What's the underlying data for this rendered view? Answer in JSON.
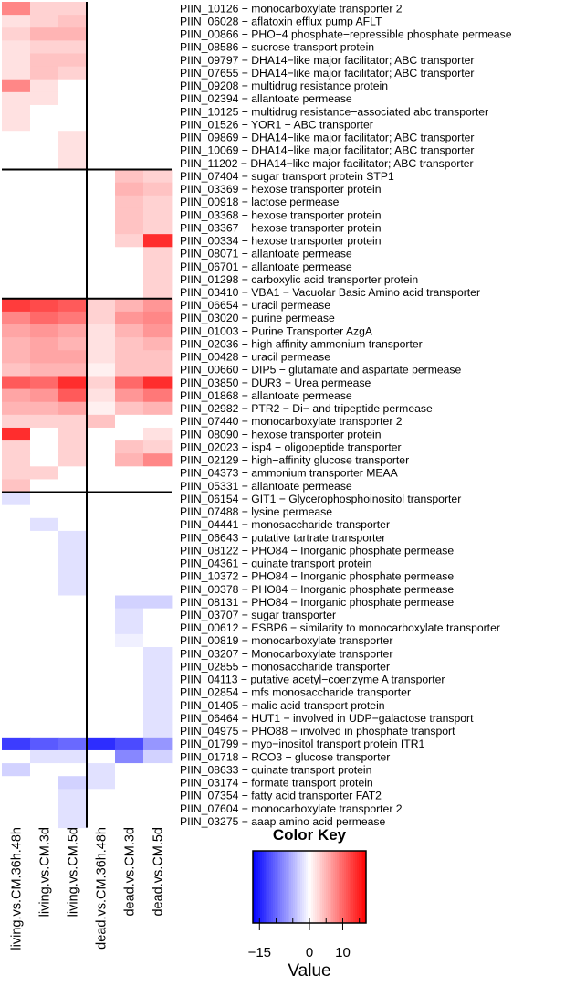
{
  "chart_data": {
    "type": "heatmap",
    "columns": [
      "living.vs.CM.36h.48h",
      "living.vs.CM.3d",
      "living.vs.CM.5d",
      "dead.vs.CM.36h.48h",
      "dead.vs.CM.3d",
      "dead.vs.CM.5d"
    ],
    "rows": [
      "PIIN_10126 − monocarboxylate transporter 2",
      "PIIN_06028 − aflatoxin efflux pump AFLT",
      "PIIN_00866 − PHO−4 phosphate−repressible phosphate permease",
      "PIIN_08586 − sucrose transport protein",
      "PIIN_09797 − DHA14−like major facilitator; ABC transporter",
      "PIIN_07655 − DHA14−like major facilitator; ABC transporter",
      "PIIN_09208 − multidrug resistance protein",
      "PIIN_02394 − allantoate permease",
      "PIIN_10125 − multidrug resistance−associated abc transporter",
      "PIIN_01526 − YOR1 − ABC transporter",
      "PIIN_09869 − DHA14−like major facilitator; ABC transporter",
      "PIIN_10069 − DHA14−like major facilitator; ABC transporter",
      "PIIN_11202 − DHA14−like major facilitator; ABC transporter",
      "PIIN_07404 − sugar transport protein STP1",
      "PIIN_03369 − hexose transporter protein",
      "PIIN_00918 − lactose permease",
      "PIIN_03368 − hexose transporter protein",
      "PIIN_03367 − hexose transporter protein",
      "PIIN_00334 − hexose transporter protein",
      "PIIN_08071 − allantoate permease",
      "PIIN_06701 − allantoate permease",
      "PIIN_01298 − carboxylic acid transporter protein",
      "PIIN_03410 − VBA1 − Vacuolar Basic Amino acid transporter",
      "PIIN_06654 − uracil permease",
      "PIIN_03020 − purine permease",
      "PIIN_01003 − Purine Transporter AzgA",
      "PIIN_02036 − high affinity ammonium transporter",
      "PIIN_00428 − uracil permease",
      "PIIN_00660 − DIP5 − glutamate and aspartate permease",
      "PIIN_03850 − DUR3 − Urea permease",
      "PIIN_01868 − allantoate permease",
      "PIIN_02982 − PTR2 − Di− and tripeptide permease",
      "PIIN_07440 − monocarboxylate transporter 2",
      "PIIN_08090 − hexose transporter protein",
      "PIIN_02023 − isp4  − oligopeptide transporter",
      "PIIN_02129 − high−affinity glucose transporter",
      "PIIN_04373 − ammonium transporter MEAA",
      "PIIN_05331 − allantoate permease",
      "PIIN_06154 − GIT1 − Glycerophosphoinositol transporter",
      "PIIN_07488 − lysine permease",
      "PIIN_04441 − monosaccharide transporter",
      "PIIN_06643 − putative tartrate transporter",
      "PIIN_08122 − PHO84 − Inorganic phosphate permease",
      "PIIN_04361 − quinate transport protein",
      "PIIN_10372 − PHO84 − Inorganic phosphate permease",
      "PIIN_00378 − PHO84 − Inorganic phosphate permease",
      "PIIN_08131 − PHO84 − Inorganic phosphate permease",
      "PIIN_03707 − sugar transporter",
      "PIIN_00612 − ESBP6 − similarity to monocarboxylate transporter",
      "PIIN_00819 − monocarboxylate transporter",
      "PIIN_03207 − Monocarboxylate transporter",
      "PIIN_02855 − monosaccharide transporter",
      "PIIN_04113 − putative acetyl−coenzyme A transporter",
      "PIIN_02854 − mfs monosaccharide transporter",
      "PIIN_01405 − malic acid transport protein",
      "PIIN_06464 − HUT1 − involved in UDP−galactose transport",
      "PIIN_04975 − PHO88 − involved in phosphate transport",
      "PIIN_01799 − myo−inositol transport protein ITR1",
      "PIIN_01718 − RCO3 − glucose transporter",
      "PIIN_08633 − quinate transport protein",
      "PIIN_03174 − formate transport protein",
      "PIIN_07354 − fatty acid transporter FAT2",
      "PIIN_07604 − monocarboxylate transporter 2",
      "PIIN_03275 − aaap amino acid permease"
    ],
    "values": [
      [
        8,
        3,
        3,
        0,
        0,
        0
      ],
      [
        2,
        3,
        4,
        0,
        0,
        0
      ],
      [
        3,
        5,
        5,
        0,
        0,
        0
      ],
      [
        2,
        3,
        3,
        0,
        0,
        0
      ],
      [
        2,
        4,
        4,
        0,
        0,
        0
      ],
      [
        2,
        4,
        3,
        0,
        0,
        0
      ],
      [
        8,
        2,
        0,
        0,
        0,
        0
      ],
      [
        2,
        2,
        0,
        0,
        0,
        0
      ],
      [
        2,
        0,
        0,
        0,
        0,
        0
      ],
      [
        2,
        0,
        0,
        0,
        0,
        0
      ],
      [
        0,
        0,
        2,
        0,
        0,
        0
      ],
      [
        0,
        0,
        2,
        0,
        0,
        0
      ],
      [
        0,
        0,
        2,
        0,
        0,
        0
      ],
      [
        0,
        0,
        0,
        0,
        4,
        3
      ],
      [
        0,
        0,
        0,
        0,
        5,
        4
      ],
      [
        0,
        0,
        0,
        0,
        4,
        3
      ],
      [
        0,
        0,
        0,
        0,
        4,
        3
      ],
      [
        0,
        0,
        0,
        0,
        4,
        3
      ],
      [
        0,
        0,
        0,
        0,
        3,
        14
      ],
      [
        0,
        0,
        0,
        0,
        0,
        3
      ],
      [
        0,
        0,
        0,
        0,
        0,
        3
      ],
      [
        0,
        0,
        0,
        0,
        0,
        3
      ],
      [
        0,
        0,
        0,
        0,
        0,
        3
      ],
      [
        13,
        12,
        11,
        3,
        5,
        7
      ],
      [
        8,
        10,
        9,
        3,
        7,
        8
      ],
      [
        6,
        7,
        6,
        2,
        5,
        7
      ],
      [
        5,
        6,
        5,
        2,
        4,
        5
      ],
      [
        5,
        6,
        6,
        2,
        4,
        4
      ],
      [
        4,
        5,
        5,
        1,
        4,
        4
      ],
      [
        11,
        10,
        14,
        3,
        10,
        14
      ],
      [
        6,
        7,
        11,
        2,
        7,
        9
      ],
      [
        5,
        5,
        6,
        1,
        4,
        5
      ],
      [
        3,
        3,
        3,
        4,
        0,
        0
      ],
      [
        14,
        0,
        3,
        0,
        0,
        2
      ],
      [
        3,
        0,
        3,
        0,
        4,
        3
      ],
      [
        3,
        0,
        3,
        0,
        5,
        8
      ],
      [
        3,
        3,
        0,
        0,
        0,
        0
      ],
      [
        4,
        0,
        0,
        0,
        0,
        0
      ],
      [
        -2,
        0,
        0,
        0,
        0,
        0
      ],
      [
        0,
        0,
        0,
        0,
        0,
        0
      ],
      [
        0,
        -2,
        0,
        0,
        0,
        0
      ],
      [
        0,
        0,
        -2,
        0,
        0,
        0
      ],
      [
        0,
        0,
        -2,
        0,
        0,
        0
      ],
      [
        0,
        0,
        -2,
        0,
        0,
        0
      ],
      [
        0,
        0,
        -2,
        0,
        0,
        0
      ],
      [
        0,
        0,
        -2,
        0,
        0,
        0
      ],
      [
        0,
        0,
        0,
        0,
        -3,
        -3
      ],
      [
        0,
        0,
        0,
        0,
        -2,
        0
      ],
      [
        0,
        0,
        0,
        0,
        -2,
        0
      ],
      [
        0,
        0,
        0,
        0,
        -1,
        0
      ],
      [
        0,
        0,
        0,
        0,
        0,
        -2
      ],
      [
        0,
        0,
        0,
        0,
        0,
        -2
      ],
      [
        0,
        0,
        0,
        0,
        0,
        -2
      ],
      [
        0,
        0,
        0,
        0,
        0,
        -2
      ],
      [
        0,
        0,
        0,
        0,
        0,
        -2
      ],
      [
        0,
        0,
        0,
        0,
        0,
        -2
      ],
      [
        0,
        0,
        0,
        0,
        0,
        -2
      ],
      [
        -13,
        -11,
        -10,
        -14,
        -12,
        -7
      ],
      [
        0,
        -2,
        -2,
        0,
        -8,
        -3
      ],
      [
        -3,
        0,
        0,
        -2,
        0,
        0
      ],
      [
        0,
        0,
        -3,
        -2,
        0,
        0
      ],
      [
        0,
        0,
        -2,
        0,
        0,
        0
      ],
      [
        0,
        0,
        -2,
        0,
        0,
        0
      ],
      [
        0,
        0,
        -2,
        0,
        0,
        0
      ]
    ],
    "color_range": [
      -17,
      17
    ],
    "colors": {
      "low": "#0000ff",
      "mid": "#ffffff",
      "high": "#ff0000"
    },
    "row_separators_after": [
      13,
      23,
      38
    ],
    "column_separators_after": [
      3
    ],
    "color_key": {
      "title": "Color Key",
      "xlabel": "Value",
      "ticks": [
        -15,
        0,
        10
      ],
      "tick_labels": [
        "−15",
        "0",
        "10"
      ],
      "minor_ticks": [
        -15,
        -10,
        -5,
        0,
        5,
        10,
        15
      ],
      "range": [
        -17,
        17
      ]
    }
  }
}
